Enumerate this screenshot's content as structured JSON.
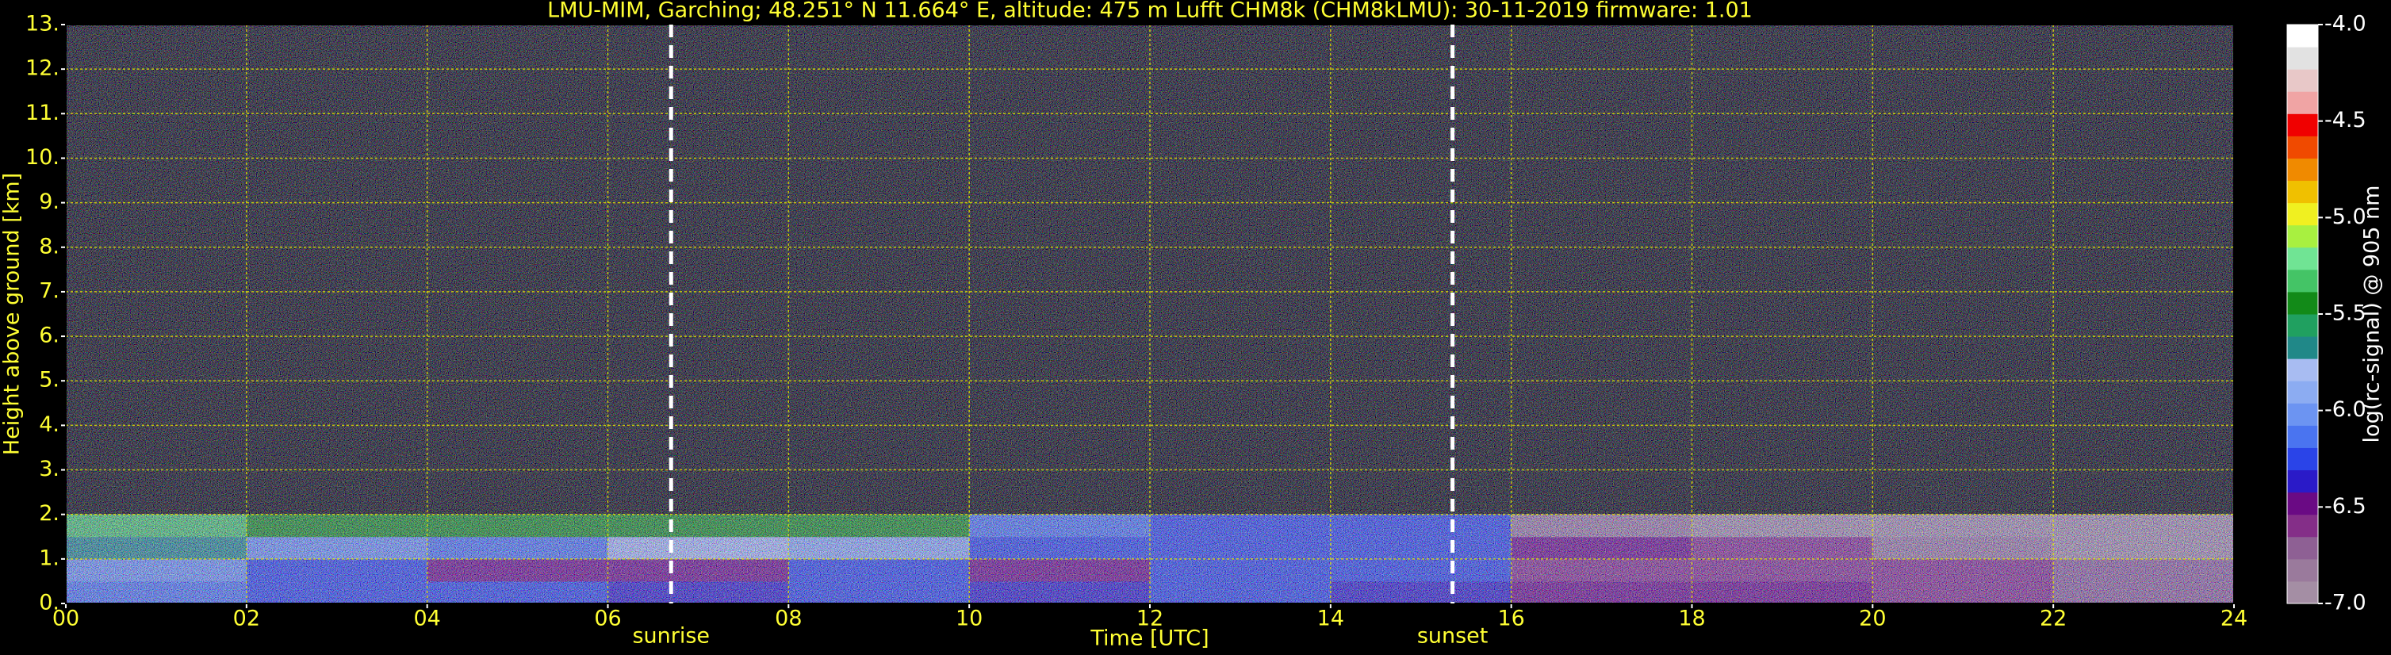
{
  "chart_data": {
    "type": "heatmap",
    "title": "LMU-MIM, Garching; 48.251° N 11.664° E, altitude: 475 m    Lufft CHM8k (CHM8kLMU): 30-11-2019    firmware: 1.01",
    "x_label": "Time [UTC]",
    "y_label": "Height above ground [km]",
    "colorbar_label": "log(rc-signal) @ 905 nm",
    "x_bins": [
      0,
      2,
      4,
      6,
      8,
      10,
      12,
      14,
      16,
      18,
      20,
      22,
      24
    ],
    "y_bins": [
      0,
      0.5,
      1,
      1.5,
      2,
      13
    ],
    "values": [
      [
        -6.1,
        -6.2,
        -6.3,
        -6.4,
        -6.3,
        -6.4,
        -6.3,
        -6.4,
        -6.5,
        -6.5,
        -6.6,
        -6.7
      ],
      [
        -6.0,
        -6.2,
        -6.5,
        -6.5,
        -6.3,
        -6.5,
        -6.3,
        -6.3,
        -6.6,
        -6.6,
        -6.6,
        -6.7
      ],
      [
        -5.7,
        -6.0,
        -6.1,
        -5.8,
        -5.9,
        -6.2,
        -6.3,
        -6.3,
        -6.5,
        -6.6,
        -6.8,
        -6.9
      ],
      [
        -5.3,
        -5.4,
        -5.5,
        -5.4,
        -5.5,
        -6.1,
        -6.2,
        -6.3,
        -6.8,
        -6.9,
        -6.9,
        -6.9
      ],
      [
        null,
        null,
        null,
        null,
        null,
        null,
        null,
        null,
        null,
        null,
        null,
        null
      ]
    ],
    "xlim": [
      0,
      24
    ],
    "xticks": [
      {
        "value": 0,
        "label": "00"
      },
      {
        "value": 2,
        "label": "02"
      },
      {
        "value": 4,
        "label": "04"
      },
      {
        "value": 6,
        "label": "06"
      },
      {
        "value": 8,
        "label": "08"
      },
      {
        "value": 10,
        "label": "10"
      },
      {
        "value": 12,
        "label": "12"
      },
      {
        "value": 14,
        "label": "14"
      },
      {
        "value": 16,
        "label": "16"
      },
      {
        "value": 18,
        "label": "18"
      },
      {
        "value": 20,
        "label": "20"
      },
      {
        "value": 22,
        "label": "22"
      },
      {
        "value": 24,
        "label": "24"
      }
    ],
    "ylim": [
      0,
      13
    ],
    "yticks": [
      {
        "value": 0,
        "label": "0."
      },
      {
        "value": 1,
        "label": "1."
      },
      {
        "value": 2,
        "label": "2."
      },
      {
        "value": 3,
        "label": "3."
      },
      {
        "value": 4,
        "label": "4."
      },
      {
        "value": 5,
        "label": "5."
      },
      {
        "value": 6,
        "label": "6."
      },
      {
        "value": 7,
        "label": "7."
      },
      {
        "value": 8,
        "label": "8."
      },
      {
        "value": 9,
        "label": "9."
      },
      {
        "value": 10,
        "label": "10."
      },
      {
        "value": 11,
        "label": "11."
      },
      {
        "value": 12,
        "label": "12."
      },
      {
        "value": 13,
        "label": "13."
      }
    ],
    "zlim": [
      -7,
      -4
    ],
    "zticks": [
      {
        "value": -4,
        "label": "-4.0"
      },
      {
        "value": -4.5,
        "label": "-4.5"
      },
      {
        "value": -5,
        "label": "-5.0"
      },
      {
        "value": -5.5,
        "label": "-5.5"
      },
      {
        "value": -6,
        "label": "-6.0"
      },
      {
        "value": -6.5,
        "label": "-6.5"
      },
      {
        "value": -7,
        "label": "-7.0"
      }
    ],
    "colormap": [
      "#a48ea4",
      "#9a7a9c",
      "#8e6094",
      "#842e88",
      "#6a0a84",
      "#2a1ac8",
      "#2a44e8",
      "#4a74f0",
      "#6c94f2",
      "#8cacf2",
      "#a8bcf2",
      "#208888",
      "#20a060",
      "#128a18",
      "#44c466",
      "#70e494",
      "#a8f040",
      "#f0f020",
      "#f0c000",
      "#f08a00",
      "#f04a00",
      "#f00000",
      "#f0a4a4",
      "#e8c8c8",
      "#e2e2e2",
      "#ffffff"
    ],
    "grid": true,
    "grid_color": "#e6e600",
    "text_color": "#ffff33",
    "annotations": [
      {
        "text": "sunrise",
        "x": 6.7
      },
      {
        "text": "sunset",
        "x": 15.35
      }
    ]
  }
}
